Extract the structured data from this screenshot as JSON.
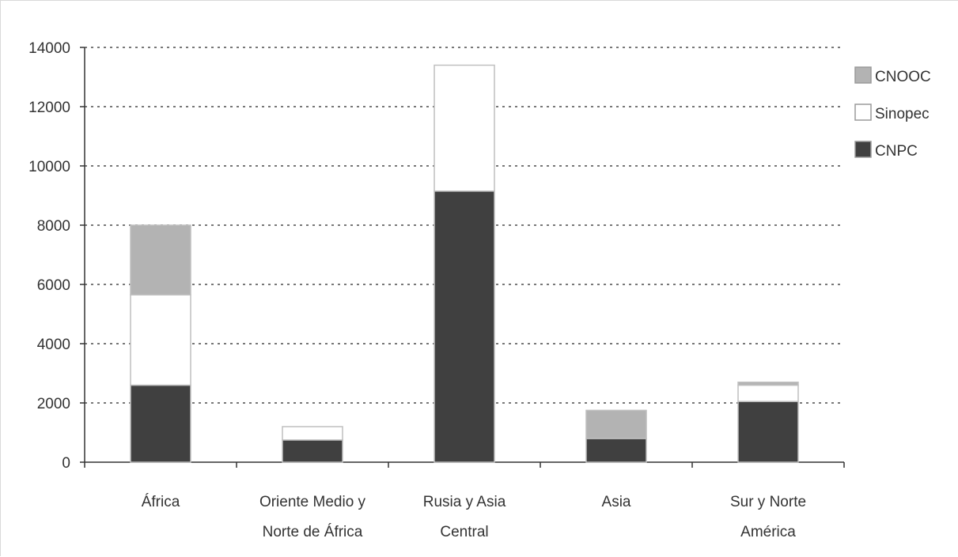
{
  "chart_data": {
    "type": "bar",
    "stacked": true,
    "categories": [
      [
        "África"
      ],
      [
        "Oriente Medio y",
        "Norte de África"
      ],
      [
        "Rusia y Asia",
        "Central"
      ],
      [
        "Asia"
      ],
      [
        "Sur y Norte",
        "América"
      ]
    ],
    "series": [
      {
        "name": "CNPC",
        "color": "#404040",
        "values": [
          2600,
          750,
          9150,
          800,
          2050
        ]
      },
      {
        "name": "Sinopec",
        "color": "#ffffff",
        "values": [
          3050,
          450,
          4250,
          0,
          550
        ]
      },
      {
        "name": "CNOOC",
        "color": "#b3b3b3",
        "values": [
          2350,
          0,
          0,
          950,
          100
        ]
      }
    ],
    "legend_order": [
      "CNOOC",
      "Sinopec",
      "CNPC"
    ],
    "ylim": [
      0,
      14000
    ],
    "yticks": [
      0,
      2000,
      4000,
      6000,
      8000,
      10000,
      12000,
      14000
    ],
    "grid": true,
    "grid_style": "dotted",
    "legend_position": "top-right",
    "title": "",
    "xlabel": "",
    "ylabel": ""
  }
}
